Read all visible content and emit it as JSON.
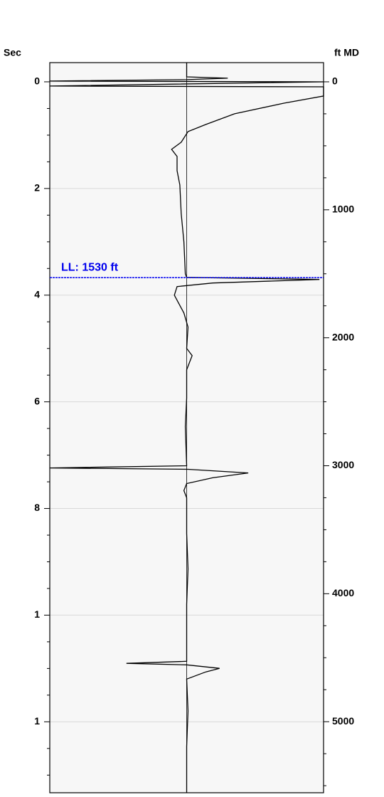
{
  "chart_data": {
    "type": "line",
    "left_axis_label": "Sec",
    "right_axis_label": "ft MD",
    "ylim": [
      -0.36,
      13.33
    ],
    "yticks": [
      0,
      2,
      4,
      6,
      8,
      {
        "value": 10,
        "label": "1"
      },
      {
        "value": 12,
        "label": "1"
      }
    ],
    "yminorticks": [
      0.5,
      1,
      1.5,
      2.5,
      3,
      3.5,
      4.5,
      5,
      5.5,
      6.5,
      7,
      7.5,
      8.5,
      9,
      9.5,
      10.5,
      11,
      11.5,
      12.5,
      13
    ],
    "y2lim": [
      -150,
      5555
    ],
    "y2ticks": [
      0,
      1000,
      2000,
      3000,
      4000,
      5000
    ],
    "y2minorticks": [
      250,
      500,
      750,
      1250,
      1500,
      1750,
      2250,
      2500,
      2750,
      3250,
      3500,
      3750,
      4250,
      4500,
      4750,
      5250,
      5500
    ],
    "xlim": [
      -1,
      1
    ],
    "grid": true,
    "series": [
      {
        "axis": "y2",
        "color": "#000000",
        "depth": [
          -150,
          -39,
          -28,
          -17,
          -6,
          0,
          33,
          39,
          111,
          167,
          250,
          333,
          389,
          472,
          528,
          583,
          694,
          806,
          1028,
          1250,
          1500,
          1528,
          1544,
          1572,
          1600,
          1667,
          1806,
          1917,
          2083,
          2139,
          2250,
          2472,
          2694,
          3000,
          3017,
          3028,
          3056,
          3094,
          3139,
          3194,
          3250,
          3528,
          3806,
          4083,
          4528,
          4544,
          4556,
          4583,
          4611,
          4667,
          4917,
          5194,
          5555
        ],
        "values": [
          0,
          0,
          0.3,
          0,
          -1,
          1,
          -1,
          1,
          1,
          0.71,
          0.35,
          0.14,
          0.01,
          -0.04,
          -0.11,
          -0.07,
          -0.07,
          -0.05,
          -0.04,
          -0.02,
          -0.01,
          0,
          0.97,
          0.19,
          -0.07,
          -0.09,
          -0.02,
          0.01,
          0,
          0.04,
          0,
          0,
          -0.01,
          0,
          -1,
          0.01,
          0.45,
          0.19,
          0,
          -0.02,
          0,
          0,
          0.01,
          0,
          0,
          -0.44,
          0,
          0.24,
          0.14,
          0,
          0.01,
          0,
          0
        ]
      }
    ],
    "annotations": [
      {
        "text": "LL: 1530 ft",
        "value": 1530,
        "color": "#0000ee"
      }
    ]
  }
}
